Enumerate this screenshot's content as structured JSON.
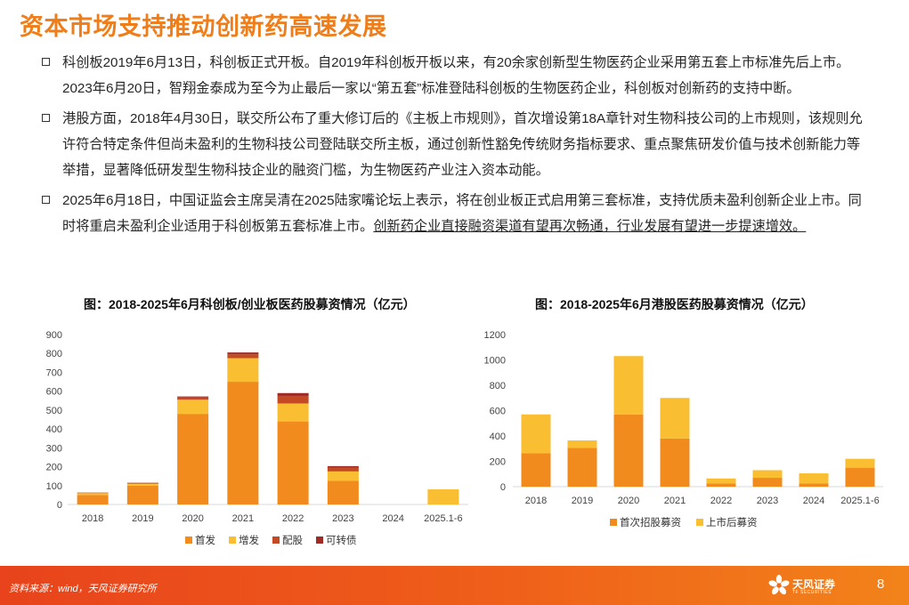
{
  "header": {
    "title": "资本市场支持推动创新药高速发展"
  },
  "bullets": [
    {
      "text": "科创板2019年6月13日，科创板正式开板。自2019年科创板开板以来，有20余家创新型生物医药企业采用第五套上市标准先后上市。2023年6月20日，智翔金泰成为至今为止最后一家以“第五套”标准登陆科创板的生物医药企业，科创板对创新药的支持中断。"
    },
    {
      "text": "港股方面，2018年4月30日，联交所公布了重大修订后的《主板上市规则》，首次增设第18A章针对生物科技公司的上市规则，该规则允许符合特定条件但尚未盈利的生物科技公司登陆联交所主板，通过创新性豁免传统财务指标要求、重点聚焦研发价值与技术创新能力等举措，显著降低研发型生物科技企业的融资门槛，为生物医药产业注入资本动能。"
    },
    {
      "text": "2025年6月18日，中国证监会主席吴清在2025陆家嘴论坛上表示，将在创业板正式启用第三套标准，支持优质未盈利创新企业上市。同时将重启未盈利企业适用于科创板第五套标准上市。",
      "underlined": "创新药企业直接融资渠道有望再次畅通，行业发展有望进一步提速增效。"
    }
  ],
  "chart_data": [
    {
      "type": "bar",
      "stacked": true,
      "title": "图：2018-2025年6月科创板/创业板医药股募资情况（亿元）",
      "categories": [
        "2018",
        "2019",
        "2020",
        "2021",
        "2022",
        "2023",
        "2024",
        "2025.1-6"
      ],
      "ylim": [
        0,
        900
      ],
      "yticks": [
        0,
        100,
        200,
        300,
        400,
        500,
        600,
        700,
        800,
        900
      ],
      "legend_position": "bottom",
      "series": [
        {
          "name": "首发",
          "color": "#F28B1E",
          "values": [
            50,
            100,
            480,
            650,
            440,
            125,
            0,
            0
          ]
        },
        {
          "name": "增发",
          "color": "#F9BE32",
          "values": [
            10,
            10,
            75,
            125,
            95,
            50,
            0,
            80
          ]
        },
        {
          "name": "配股",
          "color": "#C44A26",
          "values": [
            3,
            5,
            12,
            20,
            40,
            20,
            0,
            0
          ]
        },
        {
          "name": "可转债",
          "color": "#9E2B25",
          "values": [
            0,
            0,
            5,
            10,
            15,
            8,
            0,
            0
          ]
        }
      ]
    },
    {
      "type": "bar",
      "stacked": true,
      "title": "图：2018-2025年6月港股医药股募资情况（亿元）",
      "categories": [
        "2018",
        "2019",
        "2020",
        "2021",
        "2022",
        "2023",
        "2024",
        "2025.1-6"
      ],
      "ylim": [
        0,
        1200
      ],
      "yticks": [
        0,
        200,
        400,
        600,
        800,
        1000,
        1200
      ],
      "legend_position": "bottom",
      "series": [
        {
          "name": "首次招股募资",
          "color": "#F28B1E",
          "values": [
            265,
            305,
            570,
            380,
            25,
            70,
            25,
            150
          ]
        },
        {
          "name": "上市后募资",
          "color": "#F9BE32",
          "values": [
            305,
            60,
            460,
            320,
            40,
            60,
            80,
            70
          ]
        }
      ]
    }
  ],
  "footer": {
    "source": "资料来源：wind，天风证券研究所",
    "logo_cn": "天风证券",
    "logo_en": "TF SECURITIES",
    "page_number": "8"
  }
}
